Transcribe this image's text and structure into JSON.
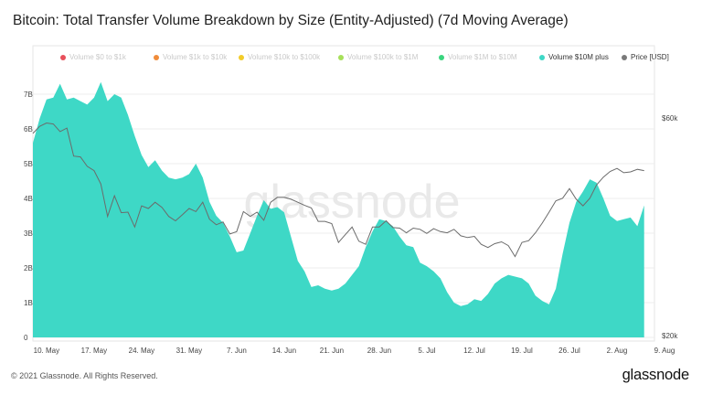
{
  "title": "Bitcoin: Total Transfer Volume Breakdown by Size (Entity-Adjusted) (7d Moving Average)",
  "watermark": "glassnode",
  "footer": {
    "copyright": "© 2021 Glassnode. All Rights Reserved.",
    "brand": "glassnode"
  },
  "legend": [
    {
      "label": "Volume $0 to $1k",
      "color": "#e8505b",
      "active": false
    },
    {
      "label": "Volume $1k to $10k",
      "color": "#f08c3a",
      "active": false
    },
    {
      "label": "Volume $10k to $100k",
      "color": "#f2cc2a",
      "active": false
    },
    {
      "label": "Volume $100k to $1M",
      "color": "#a6e05a",
      "active": false
    },
    {
      "label": "Volume $1M to $10M",
      "color": "#3ad57e",
      "active": false
    },
    {
      "label": "Volume $10M plus",
      "color": "#3ed8c6",
      "active": true
    },
    {
      "label": "Price [USD]",
      "color": "#7a7a7a",
      "active": true
    }
  ],
  "chart_data": {
    "type": "area",
    "x_start_date": "2021-05-08",
    "x_ticks": [
      "10. May",
      "17. May",
      "24. May",
      "31. May",
      "7. Jun",
      "14. Jun",
      "21. Jun",
      "28. Jun",
      "5. Jul",
      "12. Jul",
      "19. Jul",
      "26. Jul",
      "2. Aug",
      "9. Aug"
    ],
    "y_left_ticks": [
      "0",
      "1B",
      "2B",
      "3B",
      "4B",
      "5B",
      "6B",
      "7B"
    ],
    "y_left_range": [
      0,
      7000000000
    ],
    "y_right_ticks": [
      "$20k",
      "$60k"
    ],
    "y_right_scale": "log",
    "y_right_range_usd": [
      20000,
      60000
    ],
    "series": [
      {
        "name": "Volume $10M plus",
        "color": "#3ed8c6",
        "axis": "left",
        "values_billions": [
          5.6,
          6.3,
          6.85,
          6.9,
          7.3,
          6.85,
          6.9,
          6.8,
          6.7,
          6.9,
          7.35,
          6.8,
          7.0,
          6.9,
          6.4,
          5.8,
          5.25,
          4.9,
          5.1,
          4.8,
          4.6,
          4.55,
          4.6,
          4.7,
          5.0,
          4.6,
          3.9,
          3.5,
          3.3,
          2.9,
          2.45,
          2.5,
          3.0,
          3.5,
          3.95,
          3.7,
          3.75,
          3.6,
          2.9,
          2.2,
          1.9,
          1.45,
          1.5,
          1.4,
          1.35,
          1.4,
          1.55,
          1.8,
          2.05,
          2.6,
          3.05,
          3.4,
          3.35,
          3.2,
          2.9,
          2.65,
          2.6,
          2.15,
          2.05,
          1.9,
          1.7,
          1.3,
          1.0,
          0.9,
          0.95,
          1.1,
          1.05,
          1.25,
          1.55,
          1.7,
          1.8,
          1.75,
          1.7,
          1.55,
          1.2,
          1.05,
          0.95,
          1.4,
          2.4,
          3.3,
          3.9,
          4.2,
          4.55,
          4.45,
          4.0,
          3.5,
          3.35,
          3.4,
          3.45,
          3.2,
          3.8
        ]
      },
      {
        "name": "Price [USD]",
        "color": "#6b6b6b",
        "axis": "right",
        "values_usd": [
          55500,
          57500,
          58500,
          58200,
          56000,
          57000,
          49500,
          49300,
          47000,
          46000,
          43000,
          36500,
          40500,
          37200,
          37300,
          34600,
          38500,
          38000,
          39200,
          38200,
          36500,
          35700,
          36800,
          38000,
          37400,
          39200,
          36000,
          35000,
          35500,
          33400,
          33800,
          37400,
          36500,
          37300,
          35800,
          39200,
          40200,
          40200,
          39800,
          39200,
          38600,
          38100,
          35600,
          35600,
          35200,
          32000,
          33300,
          34600,
          32200,
          31700,
          34600,
          34600,
          35700,
          34500,
          34400,
          33600,
          34400,
          34200,
          33500,
          34300,
          33800,
          33600,
          34200,
          33100,
          32800,
          33000,
          31700,
          31200,
          31800,
          32100,
          31500,
          29800,
          32000,
          32300,
          33600,
          35300,
          37300,
          39500,
          40000,
          42000,
          39800,
          38500,
          40000,
          42800,
          44500,
          45800,
          46500,
          45500,
          45700,
          46300,
          46000
        ]
      }
    ],
    "grid": "horizontal",
    "legend_position": "top"
  }
}
